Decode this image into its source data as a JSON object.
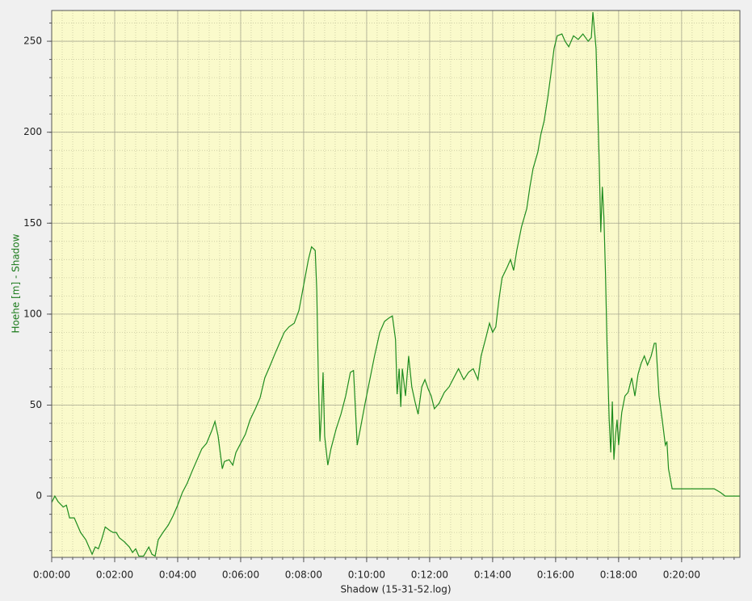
{
  "chart_data": {
    "type": "line",
    "x_label": "Shadow (15-31-52.log)",
    "y_label": "Hoehe [m] - Shadow",
    "x": [
      0,
      6,
      12,
      22,
      28,
      34,
      43,
      49,
      55,
      65,
      71,
      77,
      83,
      89,
      95,
      102,
      111,
      117,
      123,
      129,
      138,
      148,
      154,
      160,
      166,
      175,
      185,
      191,
      197,
      203,
      212,
      222,
      231,
      240,
      249,
      258,
      268,
      277,
      286,
      295,
      305,
      311,
      317,
      325,
      329,
      338,
      345,
      351,
      360,
      369,
      378,
      388,
      397,
      406,
      415,
      425,
      434,
      443,
      452,
      462,
      471,
      480,
      489,
      495,
      502,
      505,
      508,
      511,
      514,
      517,
      520,
      526,
      532,
      542,
      551,
      560,
      569,
      575,
      582,
      588,
      597,
      606,
      615,
      625,
      634,
      643,
      649,
      655,
      658,
      662,
      665,
      668,
      674,
      680,
      686,
      692,
      698,
      705,
      711,
      717,
      723,
      729,
      738,
      748,
      757,
      766,
      775,
      785,
      794,
      803,
      812,
      818,
      828,
      834,
      840,
      846,
      852,
      858,
      868,
      874,
      880,
      886,
      895,
      905,
      911,
      917,
      926,
      932,
      938,
      945,
      951,
      957,
      963,
      972,
      978,
      985,
      994,
      1003,
      1012,
      1022,
      1028,
      1031,
      1037,
      1040,
      1043,
      1046,
      1049,
      1052,
      1055,
      1058,
      1062,
      1065,
      1068,
      1071,
      1074,
      1077,
      1080,
      1086,
      1092,
      1098,
      1105,
      1111,
      1117,
      1123,
      1129,
      1135,
      1142,
      1148,
      1151,
      1157,
      1163,
      1169,
      1172,
      1175,
      1182,
      1194,
      1209,
      1225,
      1249,
      1262,
      1274,
      1283,
      1311
    ],
    "series": [
      {
        "name": "Hoehe [m] - Shadow",
        "color": "#1f8c1f",
        "values": [
          -3.5,
          0,
          -3,
          -6,
          -5,
          -12,
          -12,
          -16,
          -20,
          -24,
          -28,
          -32,
          -28,
          -29,
          -24,
          -17,
          -19,
          -20,
          -20,
          -23,
          -25,
          -28,
          -31,
          -29,
          -33,
          -33,
          -28,
          -32,
          -33,
          -24,
          -20,
          -16,
          -11,
          -5,
          2,
          7,
          14,
          20,
          26,
          29,
          36,
          41,
          33,
          15,
          19,
          20,
          17,
          24,
          29,
          34,
          42,
          48,
          54,
          65,
          71,
          78,
          84,
          90,
          93,
          95,
          102,
          116,
          130,
          137,
          135,
          113,
          64,
          30,
          46,
          68,
          33,
          17,
          26,
          37,
          45,
          55,
          68,
          69,
          28,
          37,
          51,
          64,
          77,
          90,
          96,
          98,
          99,
          86,
          56,
          70,
          49,
          70,
          55,
          77,
          60,
          52,
          45,
          60,
          64,
          59,
          55,
          48,
          51,
          57,
          60,
          65,
          70,
          64,
          68,
          70,
          64,
          77,
          88,
          95,
          90,
          93,
          108,
          120,
          126,
          130,
          124,
          135,
          148,
          158,
          170,
          180,
          189,
          199,
          206,
          219,
          232,
          246,
          253,
          254,
          250,
          247,
          253,
          251,
          254,
          250,
          252,
          266,
          246,
          215,
          184,
          145,
          170,
          153,
          122,
          82,
          42,
          24,
          52,
          20,
          33,
          42,
          28,
          46,
          55,
          57,
          65,
          55,
          67,
          73,
          77,
          72,
          77,
          84,
          84,
          55,
          42,
          28,
          30,
          15,
          4,
          4,
          4,
          4,
          4,
          4,
          2,
          0,
          0
        ]
      }
    ],
    "xlim": [
      0,
      1311
    ],
    "ylim": [
      -33.7,
      266.9
    ],
    "xticks": [
      {
        "value": 0,
        "label": "0:00:00"
      },
      {
        "value": 120,
        "label": "0:02:00"
      },
      {
        "value": 240,
        "label": "0:04:00"
      },
      {
        "value": 360,
        "label": "0:06:00"
      },
      {
        "value": 480,
        "label": "0:08:00"
      },
      {
        "value": 600,
        "label": "0:10:00"
      },
      {
        "value": 720,
        "label": "0:12:00"
      },
      {
        "value": 840,
        "label": "0:14:00"
      },
      {
        "value": 960,
        "label": "0:16:00"
      },
      {
        "value": 1080,
        "label": "0:18:00"
      },
      {
        "value": 1200,
        "label": "0:20:00"
      }
    ],
    "yticks": [
      0,
      50,
      100,
      150,
      200,
      250
    ],
    "xminor": 20,
    "yminor": 10,
    "grid": true,
    "background": "#fafacb"
  }
}
